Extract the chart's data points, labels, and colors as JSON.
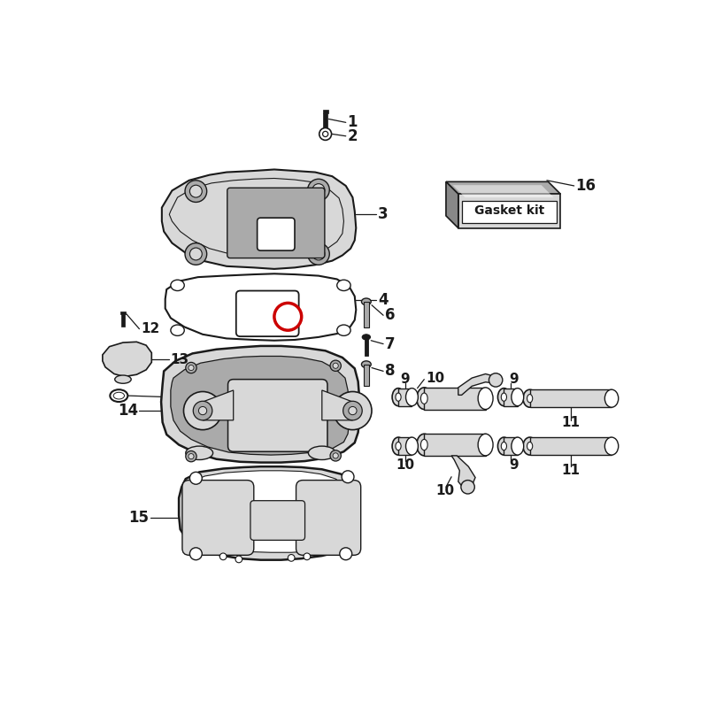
{
  "bg_color": "#ffffff",
  "lc": "#1a1a1a",
  "lg": "#d8d8d8",
  "mg": "#aaaaaa",
  "dg": "#888888",
  "red": "#cc0000"
}
